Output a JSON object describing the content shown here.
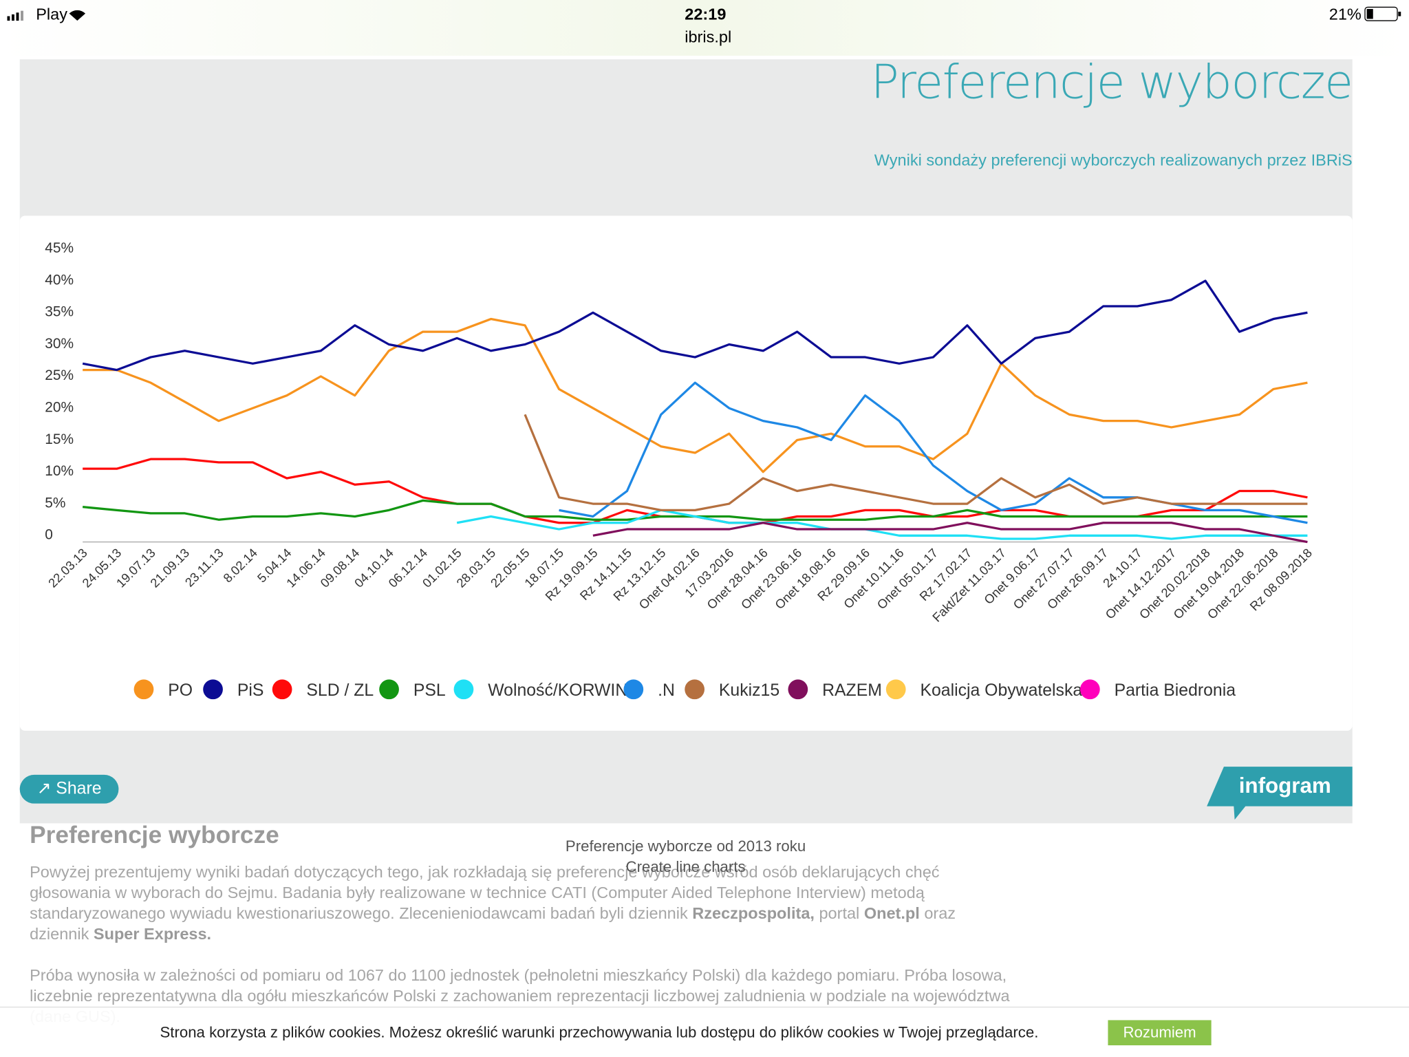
{
  "status_bar": {
    "carrier": "Play",
    "time": "22:19",
    "url": "ibris.pl",
    "battery": "21%"
  },
  "header": {
    "title": "Preferencje wyborcze",
    "subtitle": "Wyniki sondaży preferencji wyborczych realizowanych przez IBRiS"
  },
  "chart_data": {
    "type": "line",
    "categories": [
      "22.03.13",
      "24.05.13",
      "19.07.13",
      "21.09.13",
      "23.11.13",
      "8.02.14",
      "5.04.14",
      "14.06.14",
      "09.08.14",
      "04.10.14",
      "06.12.14",
      "01.02.15",
      "28.03.15",
      "22.05.15",
      "18.07.15",
      "Rz 19.09.15",
      "Rz 14.11.15",
      "Rz 13.12.15",
      "Onet 04.02.16",
      "17.03.2016",
      "Onet 28.04.16",
      "Onet 23.06.16",
      "Onet 18.08.16",
      "Rz 29.09.16",
      "Onet 10.11.16",
      "Onet 05.01.17",
      "Rz 17.02.17",
      "Fakt/Zet 11.03.17",
      "Onet 9.06.17",
      "Onet 27.07.17",
      "Onet 26.09.17",
      "24.10.17",
      "Onet 14.12.2017",
      "Onet 20.02.2018",
      "Onet 19.04.2018",
      "Onet 22.06.2018",
      "Rz 08.09.2018"
    ],
    "ylim": [
      0,
      45
    ],
    "yticks": [
      0,
      {
        "value": 5,
        "label": "5%"
      },
      {
        "value": 10,
        "label": "10%"
      },
      {
        "value": 15,
        "label": "15%"
      },
      {
        "value": 20,
        "label": "20%"
      },
      {
        "value": 25,
        "label": "25%"
      },
      {
        "value": 30,
        "label": "30%"
      },
      {
        "value": 35,
        "label": "35%"
      },
      {
        "value": 40,
        "label": "40%"
      },
      {
        "value": 45,
        "label": "45%"
      }
    ],
    "grid": false,
    "legend": "bottom",
    "series": [
      {
        "name": "PO",
        "color": "#f7931e",
        "values": [
          27,
          27,
          25,
          22,
          19,
          21,
          23,
          26,
          23,
          30,
          33,
          33,
          35,
          34,
          24,
          21,
          18,
          15,
          14,
          17,
          11,
          16,
          17,
          15,
          15,
          13,
          17,
          28,
          23,
          20,
          19,
          19,
          18,
          19,
          20,
          24,
          25
        ]
      },
      {
        "name": "PiS",
        "color": "#0c0c94",
        "values": [
          28,
          27,
          29,
          30,
          29,
          28,
          29,
          30,
          34,
          31,
          30,
          32,
          30,
          31,
          33,
          36,
          33,
          30,
          29,
          31,
          30,
          33,
          29,
          29,
          28,
          29,
          34,
          28,
          32,
          33,
          37,
          37,
          38,
          41,
          33,
          35,
          36
        ]
      },
      {
        "name": "SLD / ZL",
        "color": "#ff0a0a",
        "values": [
          11.5,
          11.5,
          13,
          13,
          12.5,
          12.5,
          10,
          11,
          9,
          9.5,
          7,
          6,
          6,
          4,
          3,
          3,
          5,
          4,
          4,
          3,
          3,
          4,
          4,
          5,
          5,
          4,
          4,
          5,
          5,
          4,
          4,
          4,
          5,
          5,
          8,
          8,
          7
        ]
      },
      {
        "name": "PSL",
        "color": "#129612",
        "values": [
          5.5,
          5,
          4.5,
          4.5,
          3.5,
          4,
          4,
          4.5,
          4,
          5,
          6.5,
          6,
          6,
          4,
          4,
          3.5,
          3.5,
          4,
          4,
          4,
          3.5,
          3.5,
          3.5,
          3.5,
          4,
          4,
          5,
          4,
          4,
          4,
          4,
          4,
          4,
          4,
          4,
          4,
          4
        ]
      },
      {
        "name": "Wolność/KORWIN",
        "color": "#1fe0f5",
        "values": [
          null,
          null,
          null,
          null,
          null,
          null,
          null,
          null,
          null,
          null,
          null,
          3,
          4,
          3,
          2,
          3,
          3,
          5,
          4,
          3,
          3,
          3,
          2,
          2,
          1,
          1,
          1,
          0.5,
          0.5,
          1,
          1,
          1,
          0.5,
          1,
          1,
          1,
          1
        ]
      },
      {
        "name": ".N",
        "color": "#1e88e5",
        "values": [
          null,
          null,
          null,
          null,
          null,
          null,
          null,
          null,
          null,
          null,
          null,
          null,
          null,
          null,
          5,
          4,
          8,
          20,
          25,
          21,
          19,
          18,
          16,
          23,
          19,
          12,
          8,
          5,
          6,
          10,
          7,
          7,
          6,
          5,
          5,
          4,
          3
        ]
      },
      {
        "name": "Kukiz15",
        "color": "#b5703f",
        "values": [
          null,
          null,
          null,
          null,
          null,
          null,
          null,
          null,
          null,
          null,
          null,
          null,
          null,
          20,
          7,
          6,
          6,
          5,
          5,
          6,
          10,
          8,
          9,
          8,
          7,
          6,
          6,
          10,
          7,
          9,
          6,
          7,
          6,
          6,
          6,
          6,
          6
        ]
      },
      {
        "name": "RAZEM",
        "color": "#800f5c",
        "values": [
          null,
          null,
          null,
          null,
          null,
          null,
          null,
          null,
          null,
          null,
          null,
          null,
          null,
          null,
          null,
          1,
          2,
          2,
          2,
          2,
          3,
          2,
          2,
          2,
          2,
          2,
          3,
          2,
          2,
          2,
          3,
          3,
          3,
          2,
          2,
          1,
          0
        ]
      },
      {
        "name": "Koalicja Obywatelska",
        "color": "#ffc94a",
        "values": [
          null,
          null,
          null,
          null,
          null,
          null,
          null,
          null,
          null,
          null,
          null,
          null,
          null,
          null,
          null,
          null,
          null,
          null,
          null,
          null,
          null,
          null,
          null,
          null,
          null,
          null,
          null,
          null,
          null,
          null,
          null,
          null,
          null,
          null,
          null,
          null,
          null
        ]
      },
      {
        "name": "Partia Biedronia",
        "color": "#ff00bb",
        "values": [
          null,
          null,
          null,
          null,
          null,
          null,
          null,
          null,
          null,
          null,
          null,
          null,
          null,
          null,
          null,
          null,
          null,
          null,
          null,
          null,
          null,
          null,
          null,
          null,
          null,
          null,
          null,
          null,
          null,
          null,
          null,
          null,
          null,
          null,
          null,
          null,
          null
        ]
      }
    ]
  },
  "share": "Share",
  "infogram": "infogram",
  "embed": {
    "caption": "Preferencje wyborcze od 2013 roku",
    "link": "Create line charts"
  },
  "article": {
    "heading": "Preferencje wyborcze",
    "p1": [
      "Powyżej prezentujemy wyniki badań dotyczących tego, jak rozkładają się preferencje wyborcze wśród osób deklarujących chęć głosowania w wyborach do Sejmu. Badania były realizowane w technice CATI (Computer Aided Telephone Interview) metodą standaryzowanego wywiadu kwestionariuszowego. Zlecenieniodawcami badań byli dziennik ",
      "Rzeczpospolita,",
      " portal ",
      "Onet.pl",
      " oraz dziennik ",
      "Super Express."
    ],
    "p2": "Próba wynosiła w zależności od pomiaru od 1067 do 1100 jednostek (pełnoletni mieszkańcy Polski) dla każdego pomiaru. Próba losowa, liczebnie reprezentatywna dla ogółu mieszkańców Polski z zachowaniem reprezentacji liczbowej zaludnienia w podziale na województwa (dane GUS)."
  },
  "cookie": {
    "text": "Strona korzysta z plików cookies. Możesz określić warunki przechowywania lub dostępu do plików cookies w Twojej przeglądarce.",
    "button": "Rozumiem"
  }
}
